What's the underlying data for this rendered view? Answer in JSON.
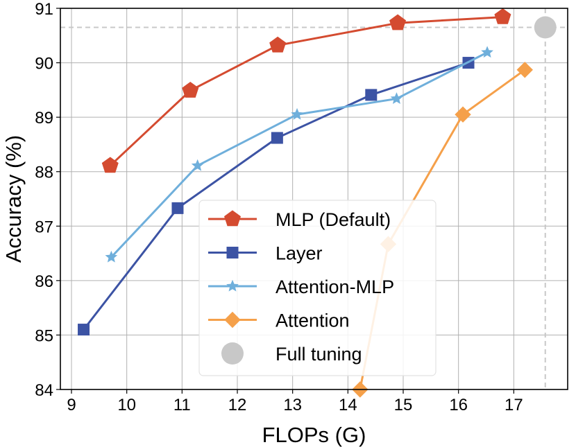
{
  "chart_data": {
    "type": "line",
    "title": "",
    "xlabel": "FLOPs (G)",
    "ylabel": "Accuracy (%)",
    "xlim": [
      8.9,
      18.0
    ],
    "ylim": [
      84,
      91
    ],
    "xticks": [
      "9",
      "10",
      "11",
      "12",
      "13",
      "14",
      "15",
      "16",
      "17"
    ],
    "yticks": [
      "84",
      "85",
      "86",
      "87",
      "88",
      "89",
      "90",
      "91"
    ],
    "grid": true,
    "legend_position": "lower-center",
    "series": [
      {
        "name": "MLP (Default)",
        "color": "#d44b30",
        "marker": "pentagon",
        "x": [
          9.7,
          11.15,
          12.73,
          14.9,
          16.8
        ],
        "y": [
          88.11,
          89.49,
          90.32,
          90.73,
          90.84
        ]
      },
      {
        "name": "Layer",
        "color": "#3c53a4",
        "marker": "square",
        "x": [
          9.22,
          10.92,
          12.72,
          14.42,
          16.18
        ],
        "y": [
          85.1,
          87.33,
          88.62,
          89.41,
          90.0
        ]
      },
      {
        "name": "Attention-MLP",
        "color": "#6fafdb",
        "marker": "star",
        "x": [
          9.72,
          11.28,
          13.08,
          14.88,
          16.52
        ],
        "y": [
          86.43,
          88.11,
          89.05,
          89.34,
          90.19
        ]
      },
      {
        "name": "Attention",
        "color": "#f5a04a",
        "marker": "diamond",
        "x": [
          14.22,
          14.73,
          16.08,
          17.2
        ],
        "y": [
          84.0,
          86.67,
          89.05,
          89.87
        ]
      }
    ],
    "reference": {
      "name": "Full tuning",
      "color": "#c8c8c8",
      "marker": "circle",
      "x": 17.57,
      "y": 90.65
    }
  }
}
